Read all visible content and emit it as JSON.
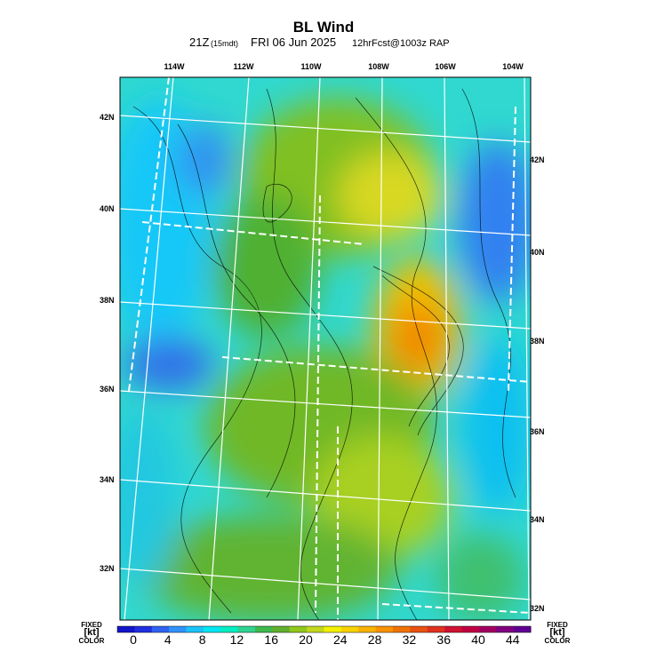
{
  "header": {
    "title": "BL Wind",
    "time": "21Z",
    "local_time": "(15mdt)",
    "date": "FRI 06 Jun 2025",
    "forecast": "12hrFcst@1003z RAP"
  },
  "map": {
    "lon_labels": [
      "114W",
      "112W",
      "110W",
      "108W",
      "106W",
      "104W"
    ],
    "lat_labels_left": [
      "42N",
      "40N",
      "38N",
      "36N",
      "34N",
      "32N"
    ],
    "lat_labels_right": [
      "42N",
      "40N",
      "38N",
      "36N",
      "34N",
      "32N"
    ]
  },
  "colorbar": {
    "left_caption": [
      "FIXED",
      "[kt]",
      "COLOR"
    ],
    "right_caption": [
      "FIXED",
      "[kt]",
      "COLOR"
    ],
    "ticks": [
      0,
      4,
      8,
      12,
      16,
      20,
      24,
      28,
      32,
      36,
      40,
      44
    ],
    "colors": [
      "#1414c8",
      "#2030e0",
      "#2f62f2",
      "#3092fa",
      "#1cc2fa",
      "#00e6f2",
      "#00eec2",
      "#30d290",
      "#3fb84e",
      "#62b02e",
      "#90c81e",
      "#c2d81e",
      "#f2f000",
      "#f8d200",
      "#f8b200",
      "#f89200",
      "#f07200",
      "#e85210",
      "#e03220",
      "#d01232",
      "#c00042",
      "#a00062",
      "#800080",
      "#600092"
    ]
  }
}
